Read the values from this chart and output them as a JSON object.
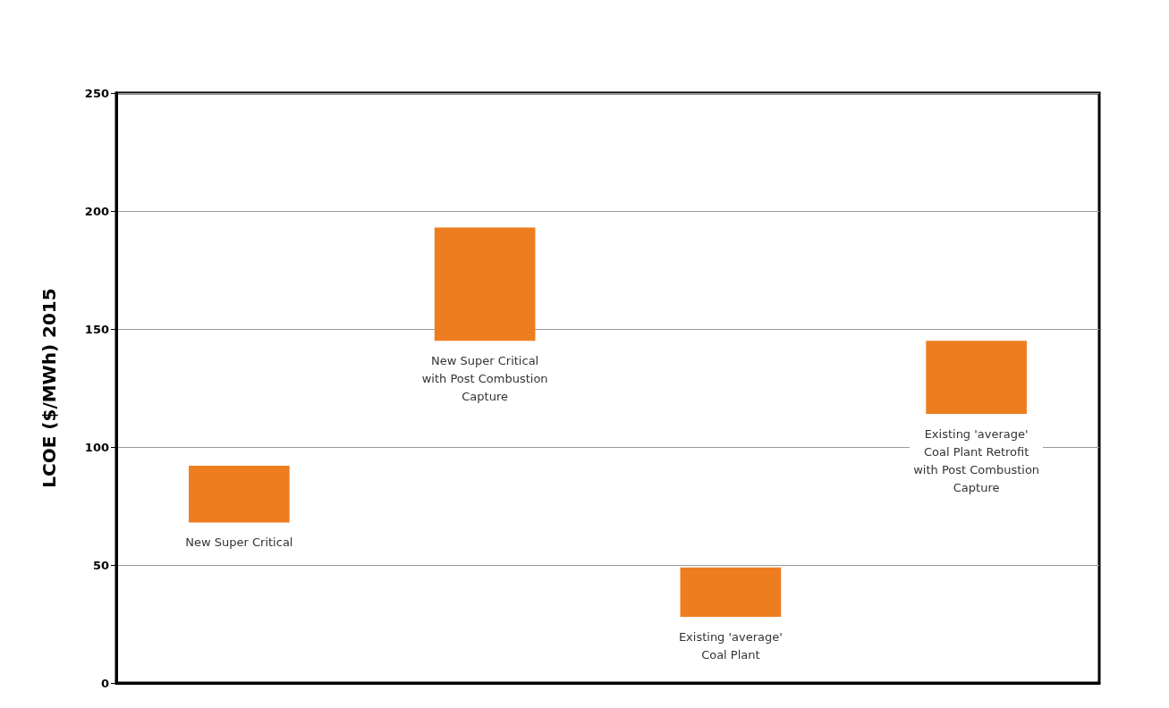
{
  "chart_data": {
    "type": "bar",
    "ylabel": "LCOE ($/MWh) 2015",
    "categories": [
      "New Super Critical",
      "New Super Critical\nwith Post Combustion\nCapture",
      "Existing 'average'\nCoal Plant",
      "Existing 'average'\nCoal Plant Retrofit\nwith Post Combustion\nCapture"
    ],
    "base": [
      68,
      145,
      28,
      114
    ],
    "values": [
      24,
      48,
      21,
      31
    ],
    "color": "#ed7d1f",
    "ylim": [
      0,
      250
    ],
    "yticks": [
      0,
      50,
      100,
      150,
      200,
      250
    ],
    "grid": "y",
    "tick_labels": "y"
  }
}
